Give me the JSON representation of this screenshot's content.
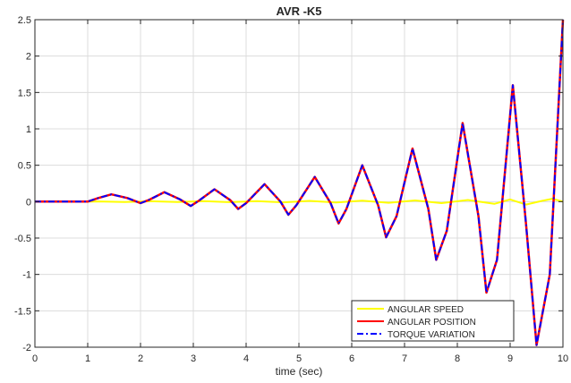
{
  "chart_data": {
    "type": "line",
    "title": "AVR -K5",
    "xlabel": "time (sec)",
    "ylabel": "",
    "xlim": [
      0,
      10
    ],
    "ylim": [
      -2,
      2.5
    ],
    "x_ticks": [
      "0",
      "1",
      "2",
      "3",
      "4",
      "5",
      "6",
      "7",
      "8",
      "9",
      "10"
    ],
    "y_ticks": [
      "-2",
      "-1.5",
      "-1",
      "-0.5",
      "0",
      "0.5",
      "1",
      "1.5",
      "2",
      "2.5"
    ],
    "grid": true,
    "legend_position": "bottom-right",
    "series": [
      {
        "name": "ANGULAR SPEED",
        "color": "#ffff00",
        "style": "solid",
        "x": [
          0,
          1.0,
          1.2,
          1.7,
          2.2,
          2.7,
          3.2,
          3.7,
          4.2,
          4.7,
          5.2,
          5.7,
          6.2,
          6.7,
          7.2,
          7.7,
          8.2,
          8.7,
          9.0,
          9.3,
          9.6,
          9.8,
          10.0
        ],
        "values": [
          0,
          0,
          0.003,
          -0.004,
          0.005,
          -0.006,
          0.006,
          -0.007,
          0.008,
          -0.009,
          0.01,
          -0.012,
          0.013,
          -0.015,
          0.017,
          -0.02,
          0.022,
          -0.03,
          0.03,
          -0.04,
          0.01,
          0.04,
          0.0
        ]
      },
      {
        "name": "ANGULAR POSITION",
        "color": "#ff0000",
        "style": "solid",
        "x": [
          0,
          1.0,
          1.2,
          1.45,
          1.75,
          2.0,
          2.15,
          2.45,
          2.75,
          2.95,
          3.1,
          3.4,
          3.7,
          3.85,
          4.0,
          4.35,
          4.65,
          4.8,
          4.95,
          5.3,
          5.6,
          5.75,
          5.9,
          6.2,
          6.5,
          6.65,
          6.85,
          7.15,
          7.45,
          7.6,
          7.8,
          8.1,
          8.4,
          8.55,
          8.75,
          9.05,
          9.3,
          9.5,
          9.75,
          10.0
        ],
        "values": [
          0,
          0,
          0.05,
          0.1,
          0.05,
          -0.02,
          0.02,
          0.13,
          0.03,
          -0.06,
          0.01,
          0.17,
          0.02,
          -0.1,
          -0.02,
          0.24,
          0.0,
          -0.18,
          -0.05,
          0.34,
          -0.02,
          -0.3,
          -0.1,
          0.5,
          -0.05,
          -0.49,
          -0.2,
          0.73,
          -0.1,
          -0.8,
          -0.4,
          1.08,
          -0.2,
          -1.25,
          -0.8,
          1.6,
          -0.3,
          -1.97,
          -1.0,
          2.5
        ]
      },
      {
        "name": "TORQUE VARIATION",
        "color": "#0000ff",
        "style": "dash-dot",
        "x": [
          0,
          1.0,
          1.2,
          1.45,
          1.75,
          2.0,
          2.15,
          2.45,
          2.75,
          2.95,
          3.1,
          3.4,
          3.7,
          3.85,
          4.0,
          4.35,
          4.65,
          4.8,
          4.95,
          5.3,
          5.6,
          5.75,
          5.9,
          6.2,
          6.5,
          6.65,
          6.85,
          7.15,
          7.45,
          7.6,
          7.8,
          8.1,
          8.4,
          8.55,
          8.75,
          9.05,
          9.3,
          9.5,
          9.75,
          10.0
        ],
        "values": [
          0,
          0,
          0.05,
          0.1,
          0.05,
          -0.02,
          0.02,
          0.13,
          0.03,
          -0.06,
          0.01,
          0.17,
          0.02,
          -0.1,
          -0.02,
          0.24,
          0.0,
          -0.18,
          -0.05,
          0.34,
          -0.02,
          -0.3,
          -0.1,
          0.5,
          -0.05,
          -0.49,
          -0.2,
          0.73,
          -0.1,
          -0.8,
          -0.4,
          1.08,
          -0.2,
          -1.25,
          -0.8,
          1.6,
          -0.3,
          -1.97,
          -1.0,
          2.5
        ]
      }
    ]
  }
}
